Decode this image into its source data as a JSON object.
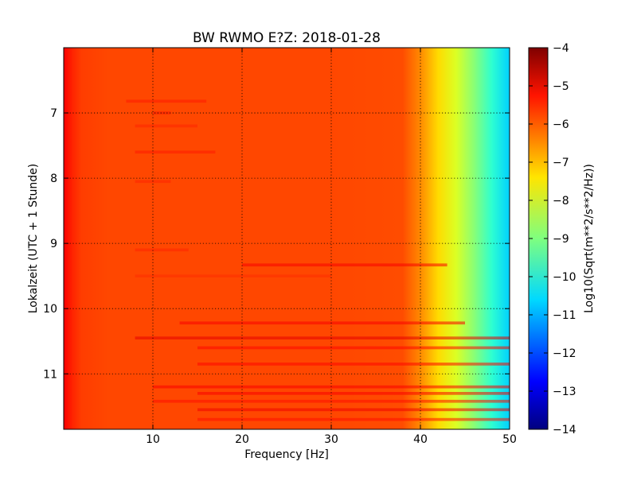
{
  "chart_data": {
    "type": "heatmap",
    "title": "BW RWMO E?Z: 2018-01-28",
    "xlabel": "Frequency [Hz]",
    "ylabel": "Lokalzeit (UTC + 1 Stunde)",
    "xlim": [
      0,
      50
    ],
    "ylim": [
      6,
      11.85
    ],
    "y_inverted": true,
    "x_ticks": [
      10,
      20,
      30,
      40,
      50
    ],
    "y_ticks": [
      7,
      8,
      9,
      10,
      11
    ],
    "grid": true,
    "colormap": "jet",
    "colorbar": {
      "label": "Log10(Sqrt(m**2/s**2/Hz))",
      "min": -14,
      "max": -4,
      "ticks": [
        -4,
        -5,
        -6,
        -7,
        -8,
        -9,
        -10,
        -11,
        -12,
        -13,
        -14
      ]
    },
    "frequency_profile": {
      "x": [
        0,
        1,
        2,
        5,
        10,
        20,
        30,
        38,
        40,
        42,
        44,
        46,
        48,
        50
      ],
      "values": [
        -5.2,
        -5.6,
        -5.85,
        -5.95,
        -5.95,
        -5.95,
        -5.95,
        -6.0,
        -6.6,
        -7.4,
        -8.1,
        -8.9,
        -9.8,
        -10.7
      ]
    },
    "bands": [
      {
        "time": 6.82,
        "x_range": [
          7,
          16
        ],
        "value": -5.5
      },
      {
        "time": 7.0,
        "x_range": [
          10,
          12
        ],
        "value": -5.5
      },
      {
        "time": 7.2,
        "x_range": [
          8,
          15
        ],
        "value": -5.6
      },
      {
        "time": 7.6,
        "x_range": [
          8,
          17
        ],
        "value": -5.5
      },
      {
        "time": 8.05,
        "x_range": [
          8,
          12
        ],
        "value": -5.6
      },
      {
        "time": 9.1,
        "x_range": [
          8,
          14
        ],
        "value": -5.6
      },
      {
        "time": 9.33,
        "x_range": [
          20,
          43
        ],
        "value": -5.2
      },
      {
        "time": 9.5,
        "x_range": [
          8,
          30
        ],
        "value": -5.7
      },
      {
        "time": 10.22,
        "x_range": [
          13,
          45
        ],
        "value": -5.2
      },
      {
        "time": 10.45,
        "x_range": [
          8,
          50
        ],
        "value": -5.0
      },
      {
        "time": 10.6,
        "x_range": [
          15,
          50
        ],
        "value": -5.3
      },
      {
        "time": 10.85,
        "x_range": [
          15,
          50
        ],
        "value": -5.3
      },
      {
        "time": 11.2,
        "x_range": [
          10,
          50
        ],
        "value": -5.2
      },
      {
        "time": 11.3,
        "x_range": [
          15,
          50
        ],
        "value": -5.2
      },
      {
        "time": 11.42,
        "x_range": [
          10,
          50
        ],
        "value": -5.4
      },
      {
        "time": 11.55,
        "x_range": [
          15,
          50
        ],
        "value": -5.1
      },
      {
        "time": 11.7,
        "x_range": [
          15,
          50
        ],
        "value": -5.4
      }
    ]
  }
}
